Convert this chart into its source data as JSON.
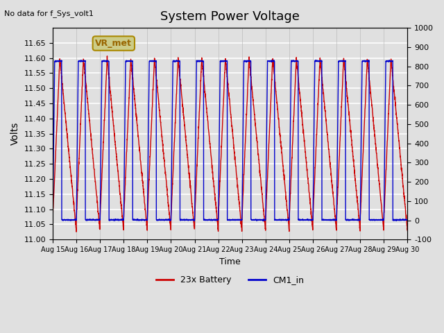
{
  "title": "System Power Voltage",
  "no_data_label": "No data for f_Sys_volt1",
  "xlabel": "Time",
  "ylabel_left": "Volts",
  "ylim_left": [
    11.0,
    11.7
  ],
  "ylim_right": [
    -100,
    1000
  ],
  "yticks_left": [
    11.0,
    11.05,
    11.1,
    11.15,
    11.2,
    11.25,
    11.3,
    11.35,
    11.4,
    11.45,
    11.5,
    11.55,
    11.6,
    11.65
  ],
  "yticks_right": [
    -100,
    0,
    100,
    200,
    300,
    400,
    500,
    600,
    700,
    800,
    900,
    1000
  ],
  "xtick_labels": [
    "Aug 15",
    "Aug 16",
    "Aug 17",
    "Aug 18",
    "Aug 19",
    "Aug 20",
    "Aug 21",
    "Aug 22",
    "Aug 23",
    "Aug 24",
    "Aug 25",
    "Aug 26",
    "Aug 27",
    "Aug 28",
    "Aug 29",
    "Aug 30"
  ],
  "background_color": "#e0e0e0",
  "plot_bg_color": "#e0e0e0",
  "grid_color": "#ffffff",
  "red_color": "#cc0000",
  "blue_color": "#0000cc",
  "legend_items": [
    "23x Battery",
    "CM1_in"
  ],
  "vr_met_label": "VR_met",
  "vr_met_box_color": "#cccc88",
  "vr_met_text_color": "#996600",
  "n_cycles": 15,
  "pts_per_cycle": 200
}
